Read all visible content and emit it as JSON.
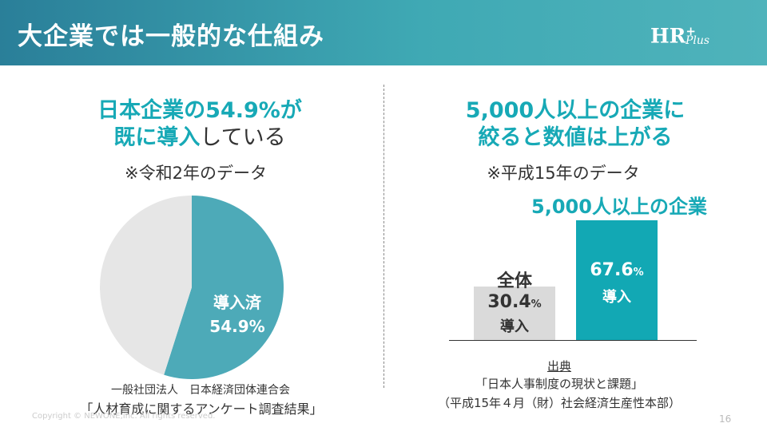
{
  "header": {
    "title": "大企業では一般的な仕組み",
    "logo_main": "HR",
    "logo_sup": "+",
    "logo_sub": "Plus"
  },
  "left": {
    "heading_line1_highlight": "日本企業の54.9%が",
    "heading_line2_highlight": "既に導入",
    "heading_line2_rest": "している",
    "note": "※令和2年のデータ",
    "pie_label_line1": "導入済",
    "pie_label_line2": "54.9%",
    "source_line1": "一般社団法人　日本経済団体連合会",
    "source_line2": "「人材育成に関するアンケート調査結果」"
  },
  "right": {
    "heading_line1": "5,000人以上の企業に",
    "heading_line2": "絞ると数値は上がる",
    "note": "※平成15年のデータ",
    "big_label": "5,000人以上の企業",
    "all_label": "全体",
    "all_value": "30.4",
    "all_unit": "%",
    "all_sub": "導入",
    "big_value": "67.6",
    "big_unit": "%",
    "big_sub": "導入",
    "source_title": "出典",
    "source_line1": "「日本人事制度の現状と課題」",
    "source_line2": "（平成15年４月（財）社会経済生産性本部）"
  },
  "chart_data": [
    {
      "type": "pie",
      "values": [
        54.9,
        45.1
      ],
      "colors": [
        "#4daab8",
        "#e6e6e6"
      ]
    },
    {
      "type": "bar",
      "categories": [
        "全体",
        "5,000人以上の企業"
      ],
      "values": [
        30.4,
        67.6
      ],
      "colors": [
        "#dadada",
        "#12a8b4"
      ]
    }
  ],
  "footer": {
    "copyright": "Copyright © NEWONE,Inc. All rights reserved.",
    "page_number": "16"
  }
}
